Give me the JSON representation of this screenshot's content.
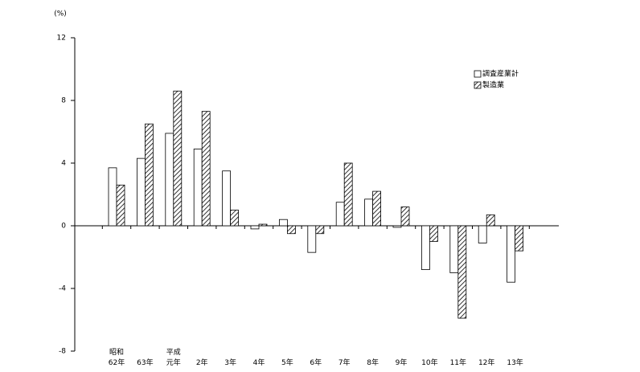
{
  "chart_data": {
    "type": "bar",
    "ylabel": "(%)",
    "categories": [
      "昭和\n62年",
      "63年",
      "平成\n元年",
      "2年",
      "3年",
      "4年",
      "5年",
      "6年",
      "7年",
      "8年",
      "9年",
      "10年",
      "11年",
      "12年",
      "13年"
    ],
    "series": [
      {
        "name": "調査産業計",
        "color": "#ffffff",
        "hatch": false,
        "values": [
          3.7,
          4.3,
          5.9,
          4.9,
          3.5,
          -0.2,
          0.4,
          -1.7,
          1.5,
          1.7,
          -0.1,
          -2.8,
          -3.0,
          -1.1,
          -3.6
        ]
      },
      {
        "name": "製造業",
        "color": "#000000",
        "hatch": true,
        "values": [
          2.6,
          6.5,
          8.6,
          7.3,
          1.0,
          0.1,
          -0.5,
          -0.5,
          4.0,
          2.2,
          1.2,
          -1.0,
          -5.9,
          0.7,
          -1.6
        ]
      }
    ],
    "ylim": [
      -8,
      12
    ],
    "yticks": [
      -8,
      -4,
      0,
      4,
      8,
      12
    ],
    "legend": "upper right"
  }
}
